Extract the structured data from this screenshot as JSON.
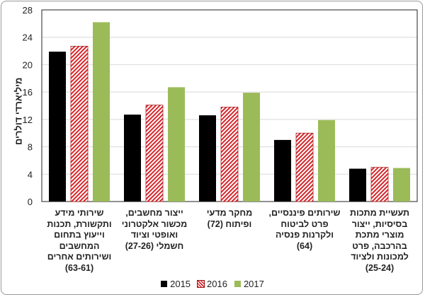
{
  "chart_data": {
    "type": "bar",
    "title": "",
    "ylabel": "מיליארדי דולרים",
    "xlabel": "",
    "ylim": [
      0,
      28
    ],
    "yticks": [
      0,
      4,
      8,
      12,
      16,
      20,
      24,
      28
    ],
    "grid": true,
    "legend_position": "bottom",
    "categories": [
      "שירותי מידע ותקשורת, תכנות וייעוץ בתחום המחשבים ושירותים אחרים (63-61)",
      "ייצור מחשבים, מכשור אלקטרוני ואופטי וציוד חשמלי (27-26)",
      "מחקר מדעי ופיתוח (72)",
      "שירותים פיננסיים, פרט לביטוח ולקרנות פנסיה (64)",
      "תעשיית מתכות בסיסיות, ייצור מוצרי מתכת בהרכבה, פרט למכונות ולציוד (25-24)"
    ],
    "series": [
      {
        "name": "2015",
        "color": "#000000",
        "values": [
          21.9,
          12.7,
          12.6,
          9.0,
          4.8
        ]
      },
      {
        "name": "2016",
        "color": "#d7262b",
        "pattern": "diagonal-hatch",
        "values": [
          22.7,
          14.1,
          13.8,
          10.0,
          5.0
        ]
      },
      {
        "name": "2017",
        "color": "#9bbb59",
        "values": [
          26.2,
          16.7,
          15.9,
          11.9,
          4.9
        ]
      }
    ]
  }
}
